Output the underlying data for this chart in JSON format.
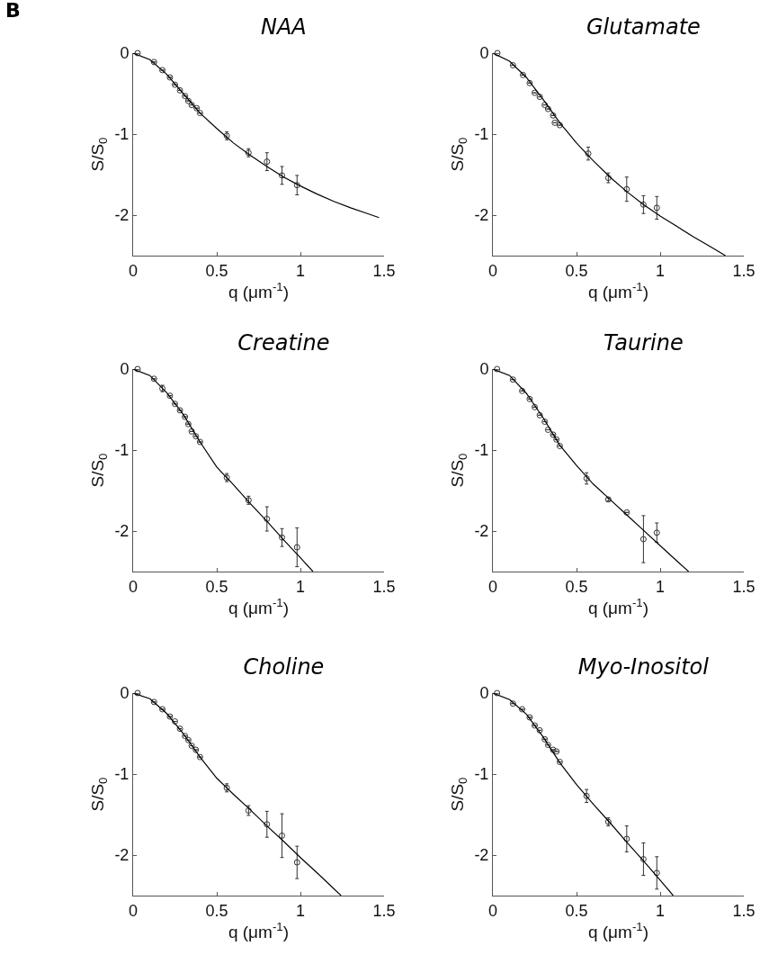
{
  "chart_data": [
    {
      "type": "scatter",
      "title": "NAA",
      "xlabel": "q (μm$^{-1}$)",
      "ylabel": "S/S$_{0}$",
      "xlim": [
        0,
        1.5
      ],
      "xticks": [
        0,
        0.5,
        1,
        1.5
      ],
      "ylim": [
        -2.5,
        0
      ],
      "yticks": [
        -2,
        -1,
        0
      ],
      "annotations": [
        "B"
      ],
      "series": [
        {
          "type": "scatter",
          "color": "#333333",
          "marker": "circle",
          "x": [
            0.027,
            0.125,
            0.175,
            0.22,
            0.25,
            0.28,
            0.31,
            0.33,
            0.35,
            0.38,
            0.4,
            0.56,
            0.69,
            0.8,
            0.89,
            0.98
          ],
          "values": [
            0,
            -0.11,
            -0.21,
            -0.3,
            -0.39,
            -0.46,
            -0.53,
            -0.59,
            -0.64,
            -0.68,
            -0.74,
            -1.02,
            -1.23,
            -1.34,
            -1.51,
            -1.63
          ],
          "errors": [
            null,
            null,
            null,
            null,
            null,
            null,
            null,
            null,
            null,
            null,
            null,
            0.05,
            0.05,
            0.11,
            0.11,
            0.12
          ]
        },
        {
          "type": "line",
          "color": "#000000",
          "marker": "none",
          "line_style": "solid",
          "x": [
            0,
            0.1,
            0.2,
            0.3,
            0.4,
            0.5,
            0.6,
            0.7,
            0.8,
            0.9,
            1.0,
            1.1,
            1.2,
            1.3,
            1.4,
            1.47
          ],
          "values": [
            0,
            -0.08,
            -0.26,
            -0.5,
            -0.74,
            -0.93,
            -1.11,
            -1.26,
            -1.4,
            -1.53,
            -1.64,
            -1.74,
            -1.83,
            -1.91,
            -1.98,
            -2.03
          ]
        }
      ]
    },
    {
      "type": "scatter",
      "title": "Glutamate",
      "xlabel": "q (μm$^{-1}$)",
      "ylabel": "S/S$_{0}$",
      "xlim": [
        0,
        1.5
      ],
      "xticks": [
        0,
        0.5,
        1,
        1.5
      ],
      "ylim": [
        -2.5,
        0
      ],
      "yticks": [
        -2,
        -1,
        0
      ],
      "series": [
        {
          "type": "scatter",
          "color": "#333333",
          "marker": "circle",
          "x": [
            0.027,
            0.12,
            0.18,
            0.22,
            0.25,
            0.28,
            0.31,
            0.33,
            0.36,
            0.37,
            0.4,
            0.57,
            0.69,
            0.8,
            0.9,
            0.98
          ],
          "values": [
            0,
            -0.15,
            -0.27,
            -0.37,
            -0.49,
            -0.54,
            -0.64,
            -0.69,
            -0.77,
            -0.86,
            -0.89,
            -1.24,
            -1.54,
            -1.68,
            -1.87,
            -1.91
          ],
          "errors": [
            null,
            null,
            null,
            null,
            null,
            null,
            null,
            null,
            null,
            null,
            null,
            0.08,
            0.06,
            0.15,
            0.11,
            0.14
          ]
        },
        {
          "type": "line",
          "color": "#000000",
          "marker": "none",
          "line_style": "solid",
          "x": [
            0,
            0.1,
            0.2,
            0.3,
            0.4,
            0.5,
            0.6,
            0.7,
            0.8,
            0.9,
            1.0,
            1.1,
            1.2,
            1.3,
            1.39
          ],
          "values": [
            0,
            -0.1,
            -0.3,
            -0.57,
            -0.86,
            -1.11,
            -1.33,
            -1.53,
            -1.71,
            -1.87,
            -2.01,
            -2.14,
            -2.27,
            -2.39,
            -2.5
          ]
        }
      ]
    },
    {
      "type": "scatter",
      "title": "Creatine",
      "xlabel": "q (μm$^{-1}$)",
      "ylabel": "S/S$_{0}$",
      "xlim": [
        0,
        1.5
      ],
      "xticks": [
        0,
        0.5,
        1,
        1.5
      ],
      "ylim": [
        -2.5,
        0
      ],
      "yticks": [
        -2,
        -1,
        0
      ],
      "series": [
        {
          "type": "scatter",
          "color": "#333333",
          "marker": "circle",
          "x": [
            0.027,
            0.125,
            0.175,
            0.22,
            0.25,
            0.28,
            0.31,
            0.33,
            0.35,
            0.375,
            0.4,
            0.56,
            0.69,
            0.8,
            0.89,
            0.98
          ],
          "values": [
            0,
            -0.12,
            -0.24,
            -0.33,
            -0.43,
            -0.51,
            -0.59,
            -0.68,
            -0.77,
            -0.83,
            -0.9,
            -1.34,
            -1.62,
            -1.85,
            -2.08,
            -2.2
          ],
          "errors": [
            null,
            null,
            0.04,
            null,
            null,
            null,
            null,
            null,
            null,
            null,
            null,
            0.05,
            0.05,
            0.15,
            0.11,
            0.24
          ]
        },
        {
          "type": "line",
          "color": "#000000",
          "marker": "none",
          "line_style": "solid",
          "x": [
            0,
            0.1,
            0.2,
            0.3,
            0.4,
            0.5,
            0.6,
            0.7,
            0.8,
            0.9,
            1.0,
            1.075
          ],
          "values": [
            0,
            -0.08,
            -0.29,
            -0.56,
            -0.9,
            -1.21,
            -1.43,
            -1.66,
            -1.88,
            -2.11,
            -2.33,
            -2.5
          ]
        }
      ]
    },
    {
      "type": "scatter",
      "title": "Taurine",
      "xlabel": "q (μm$^{-1}$)",
      "ylabel": "S/S$_{0}$",
      "xlim": [
        0,
        1.5
      ],
      "xticks": [
        0,
        0.5,
        1,
        1.5
      ],
      "ylim": [
        -2.5,
        0
      ],
      "yticks": [
        -2,
        -1,
        0
      ],
      "series": [
        {
          "type": "scatter",
          "color": "#333333",
          "marker": "circle",
          "x": [
            0.025,
            0.12,
            0.175,
            0.22,
            0.25,
            0.28,
            0.31,
            0.33,
            0.36,
            0.38,
            0.4,
            0.56,
            0.69,
            0.8,
            0.9,
            0.98
          ],
          "values": [
            0,
            -0.13,
            -0.27,
            -0.37,
            -0.47,
            -0.57,
            -0.65,
            -0.75,
            -0.81,
            -0.87,
            -0.95,
            -1.35,
            -1.61,
            -1.77,
            -2.1,
            -2.02
          ],
          "errors": [
            null,
            null,
            null,
            null,
            null,
            null,
            null,
            null,
            null,
            null,
            null,
            0.07,
            0.02,
            null,
            0.29,
            0.12
          ]
        },
        {
          "type": "line",
          "color": "#000000",
          "marker": "none",
          "line_style": "solid",
          "x": [
            0,
            0.1,
            0.2,
            0.3,
            0.4,
            0.5,
            0.6,
            0.7,
            0.8,
            0.9,
            1.0,
            1.1,
            1.17
          ],
          "values": [
            0,
            -0.08,
            -0.3,
            -0.6,
            -0.94,
            -1.19,
            -1.42,
            -1.61,
            -1.8,
            -1.99,
            -2.18,
            -2.37,
            -2.5
          ]
        }
      ]
    },
    {
      "type": "scatter",
      "title": "Choline",
      "xlabel": "q (μm$^{-1}$)",
      "ylabel": "S/S$_{0}$",
      "xlim": [
        0,
        1.5
      ],
      "xticks": [
        0,
        0.5,
        1,
        1.5
      ],
      "ylim": [
        -2.5,
        0
      ],
      "yticks": [
        -2,
        -1,
        0
      ],
      "series": [
        {
          "type": "scatter",
          "color": "#333333",
          "marker": "circle",
          "x": [
            0.027,
            0.125,
            0.175,
            0.22,
            0.25,
            0.28,
            0.31,
            0.33,
            0.35,
            0.375,
            0.4,
            0.56,
            0.69,
            0.8,
            0.89,
            0.98
          ],
          "values": [
            0,
            -0.11,
            -0.2,
            -0.29,
            -0.35,
            -0.44,
            -0.53,
            -0.58,
            -0.65,
            -0.7,
            -0.79,
            -1.17,
            -1.45,
            -1.62,
            -1.76,
            -2.09
          ],
          "errors": [
            null,
            null,
            null,
            null,
            null,
            null,
            null,
            null,
            null,
            null,
            null,
            0.05,
            0.06,
            0.16,
            0.27,
            0.2
          ]
        },
        {
          "type": "line",
          "color": "#000000",
          "marker": "none",
          "line_style": "solid",
          "x": [
            0,
            0.1,
            0.2,
            0.3,
            0.4,
            0.5,
            0.6,
            0.7,
            0.8,
            0.9,
            1.0,
            1.1,
            1.243
          ],
          "values": [
            0,
            -0.07,
            -0.25,
            -0.5,
            -0.79,
            -1.05,
            -1.25,
            -1.44,
            -1.64,
            -1.83,
            -2.03,
            -2.22,
            -2.5
          ]
        }
      ]
    },
    {
      "type": "scatter",
      "title": "Myo-Inositol",
      "xlabel": "q (μm$^{-1}$)",
      "ylabel": "S/S$_{0}$",
      "xlim": [
        0,
        1.5
      ],
      "xticks": [
        0,
        0.5,
        1,
        1.5
      ],
      "ylim": [
        -2.5,
        0
      ],
      "yticks": [
        -2,
        -1,
        0
      ],
      "series": [
        {
          "type": "scatter",
          "color": "#333333",
          "marker": "circle",
          "x": [
            0.025,
            0.12,
            0.175,
            0.22,
            0.25,
            0.28,
            0.31,
            0.33,
            0.36,
            0.38,
            0.4,
            0.56,
            0.69,
            0.8,
            0.9,
            0.98
          ],
          "values": [
            0,
            -0.13,
            -0.2,
            -0.3,
            -0.4,
            -0.46,
            -0.57,
            -0.64,
            -0.7,
            -0.72,
            -0.85,
            -1.27,
            -1.59,
            -1.8,
            -2.05,
            -2.22
          ],
          "errors": [
            null,
            null,
            null,
            null,
            null,
            null,
            null,
            null,
            null,
            null,
            null,
            0.08,
            0.05,
            0.16,
            0.2,
            0.2
          ]
        },
        {
          "type": "line",
          "color": "#000000",
          "marker": "none",
          "line_style": "solid",
          "x": [
            0,
            0.1,
            0.2,
            0.3,
            0.4,
            0.5,
            0.6,
            0.7,
            0.8,
            0.9,
            1.0,
            1.078
          ],
          "values": [
            0,
            -0.08,
            -0.26,
            -0.54,
            -0.86,
            -1.13,
            -1.37,
            -1.6,
            -1.84,
            -2.07,
            -2.31,
            -2.5
          ]
        }
      ]
    }
  ]
}
